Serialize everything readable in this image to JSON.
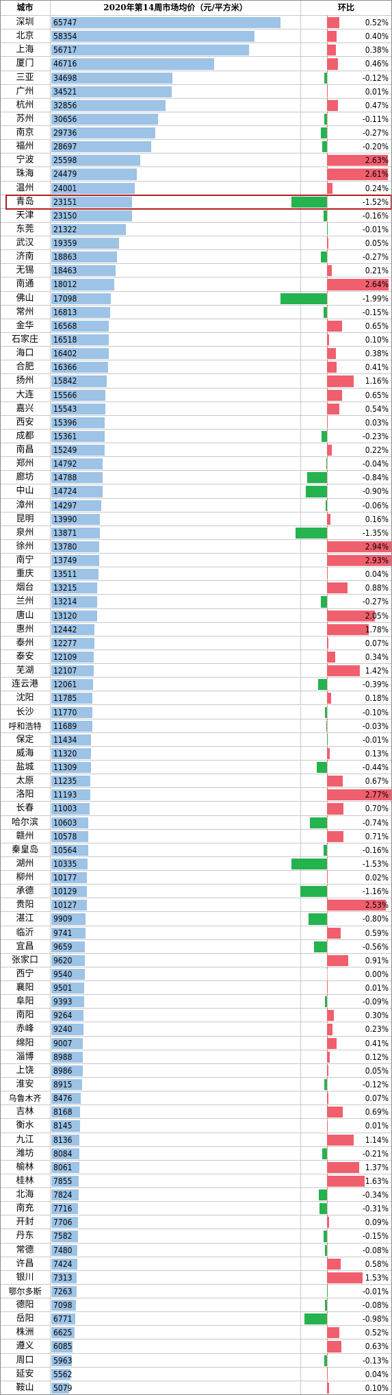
{
  "header": {
    "city": "城市",
    "title": "2020年第14周市场均价（元/平方米）",
    "change": "环比"
  },
  "colors": {
    "price_bar": "#9dc3e6",
    "increase": "#f05f6e",
    "decrease": "#24b34f",
    "highlight_border": "#b01e1e"
  },
  "highlight": {
    "city": "青岛"
  },
  "chart_data": {
    "type": "table",
    "title": "2020年第14周市场均价（元/平方米）",
    "columns": [
      "城市",
      "2020年第14周市场均价（元/平方米）",
      "环比"
    ],
    "rows": [
      {
        "city": "深圳",
        "price": 65747,
        "change": "0.52%"
      },
      {
        "city": "北京",
        "price": 58354,
        "change": "0.40%"
      },
      {
        "city": "上海",
        "price": 56717,
        "change": "0.38%"
      },
      {
        "city": "厦门",
        "price": 46716,
        "change": "0.46%"
      },
      {
        "city": "三亚",
        "price": 34698,
        "change": "-0.12%"
      },
      {
        "city": "广州",
        "price": 34521,
        "change": "0.01%"
      },
      {
        "city": "杭州",
        "price": 32856,
        "change": "0.47%"
      },
      {
        "city": "苏州",
        "price": 30656,
        "change": "-0.11%"
      },
      {
        "city": "南京",
        "price": 29736,
        "change": "-0.27%"
      },
      {
        "city": "福州",
        "price": 28697,
        "change": "-0.20%"
      },
      {
        "city": "宁波",
        "price": 25598,
        "change": "2.63%"
      },
      {
        "city": "珠海",
        "price": 24479,
        "change": "2.61%"
      },
      {
        "city": "温州",
        "price": 24001,
        "change": "0.24%"
      },
      {
        "city": "青岛",
        "price": 23151,
        "change": "-1.52%"
      },
      {
        "city": "天津",
        "price": 23150,
        "change": "-0.16%"
      },
      {
        "city": "东莞",
        "price": 21322,
        "change": "-0.01%"
      },
      {
        "city": "武汉",
        "price": 19359,
        "change": "0.05%"
      },
      {
        "city": "济南",
        "price": 18863,
        "change": "-0.27%"
      },
      {
        "city": "无锡",
        "price": 18463,
        "change": "0.21%"
      },
      {
        "city": "南通",
        "price": 18012,
        "change": "2.64%"
      },
      {
        "city": "佛山",
        "price": 17098,
        "change": "-1.99%"
      },
      {
        "city": "常州",
        "price": 16813,
        "change": "-0.15%"
      },
      {
        "city": "金华",
        "price": 16568,
        "change": "0.65%"
      },
      {
        "city": "石家庄",
        "price": 16518,
        "change": "0.10%"
      },
      {
        "city": "海口",
        "price": 16402,
        "change": "0.38%"
      },
      {
        "city": "合肥",
        "price": 16366,
        "change": "0.41%"
      },
      {
        "city": "扬州",
        "price": 15842,
        "change": "1.16%"
      },
      {
        "city": "大连",
        "price": 15566,
        "change": "0.65%"
      },
      {
        "city": "嘉兴",
        "price": 15543,
        "change": "0.54%"
      },
      {
        "city": "西安",
        "price": 15396,
        "change": "0.03%"
      },
      {
        "city": "成都",
        "price": 15361,
        "change": "-0.23%"
      },
      {
        "city": "南昌",
        "price": 15249,
        "change": "0.22%"
      },
      {
        "city": "郑州",
        "price": 14792,
        "change": "-0.04%"
      },
      {
        "city": "廊坊",
        "price": 14788,
        "change": "-0.84%"
      },
      {
        "city": "中山",
        "price": 14724,
        "change": "-0.90%"
      },
      {
        "city": "漳州",
        "price": 14297,
        "change": "-0.06%"
      },
      {
        "city": "昆明",
        "price": 13990,
        "change": "0.16%"
      },
      {
        "city": "泉州",
        "price": 13871,
        "change": "-1.35%"
      },
      {
        "city": "徐州",
        "price": 13780,
        "change": "2.94%"
      },
      {
        "city": "南宁",
        "price": 13749,
        "change": "2.93%"
      },
      {
        "city": "重庆",
        "price": 13511,
        "change": "0.04%"
      },
      {
        "city": "烟台",
        "price": 13215,
        "change": "0.88%"
      },
      {
        "city": "兰州",
        "price": 13214,
        "change": "-0.27%"
      },
      {
        "city": "唐山",
        "price": 13120,
        "change": "2.05%"
      },
      {
        "city": "惠州",
        "price": 12442,
        "change": "1.78%"
      },
      {
        "city": "泰州",
        "price": 12277,
        "change": "0.07%"
      },
      {
        "city": "泰安",
        "price": 12109,
        "change": "0.34%"
      },
      {
        "city": "芜湖",
        "price": 12107,
        "change": "1.42%"
      },
      {
        "city": "连云港",
        "price": 12061,
        "change": "-0.39%"
      },
      {
        "city": "沈阳",
        "price": 11785,
        "change": "0.18%"
      },
      {
        "city": "长沙",
        "price": 11770,
        "change": "-0.10%"
      },
      {
        "city": "呼和浩特",
        "price": 11689,
        "change": "-0.03%"
      },
      {
        "city": "保定",
        "price": 11434,
        "change": "-0.01%"
      },
      {
        "city": "威海",
        "price": 11320,
        "change": "0.13%"
      },
      {
        "city": "盐城",
        "price": 11309,
        "change": "-0.44%"
      },
      {
        "city": "太原",
        "price": 11235,
        "change": "0.67%"
      },
      {
        "city": "洛阳",
        "price": 11193,
        "change": "2.77%"
      },
      {
        "city": "长春",
        "price": 11003,
        "change": "0.70%"
      },
      {
        "city": "哈尔滨",
        "price": 10603,
        "change": "-0.74%"
      },
      {
        "city": "赣州",
        "price": 10578,
        "change": "0.71%"
      },
      {
        "city": "秦皇岛",
        "price": 10564,
        "change": "-0.16%"
      },
      {
        "city": "湖州",
        "price": 10335,
        "change": "-1.53%"
      },
      {
        "city": "柳州",
        "price": 10177,
        "change": "0.02%"
      },
      {
        "city": "承德",
        "price": 10129,
        "change": "-1.16%"
      },
      {
        "city": "贵阳",
        "price": 10127,
        "change": "2.53%"
      },
      {
        "city": "湛江",
        "price": 9909,
        "change": "-0.80%"
      },
      {
        "city": "临沂",
        "price": 9741,
        "change": "0.59%"
      },
      {
        "city": "宜昌",
        "price": 9659,
        "change": "-0.56%"
      },
      {
        "city": "张家口",
        "price": 9620,
        "change": "0.91%"
      },
      {
        "city": "西宁",
        "price": 9540,
        "change": "0.00%"
      },
      {
        "city": "襄阳",
        "price": 9501,
        "change": "0.01%"
      },
      {
        "city": "阜阳",
        "price": 9393,
        "change": "-0.09%"
      },
      {
        "city": "南阳",
        "price": 9264,
        "change": "0.30%"
      },
      {
        "city": "赤峰",
        "price": 9240,
        "change": "0.23%"
      },
      {
        "city": "绵阳",
        "price": 9007,
        "change": "0.41%"
      },
      {
        "city": "淄博",
        "price": 8988,
        "change": "0.12%"
      },
      {
        "city": "上饶",
        "price": 8986,
        "change": "0.05%"
      },
      {
        "city": "淮安",
        "price": 8915,
        "change": "-0.12%"
      },
      {
        "city": "乌鲁木齐",
        "price": 8476,
        "change": "0.07%"
      },
      {
        "city": "吉林",
        "price": 8168,
        "change": "0.69%"
      },
      {
        "city": "衡水",
        "price": 8145,
        "change": "0.01%"
      },
      {
        "city": "九江",
        "price": 8136,
        "change": "1.14%"
      },
      {
        "city": "潍坊",
        "price": 8084,
        "change": "-0.21%"
      },
      {
        "city": "榆林",
        "price": 8061,
        "change": "1.37%"
      },
      {
        "city": "桂林",
        "price": 7855,
        "change": "1.63%"
      },
      {
        "city": "北海",
        "price": 7824,
        "change": "-0.34%"
      },
      {
        "city": "南充",
        "price": 7716,
        "change": "-0.31%"
      },
      {
        "city": "开封",
        "price": 7706,
        "change": "0.09%"
      },
      {
        "city": "丹东",
        "price": 7582,
        "change": "-0.15%"
      },
      {
        "city": "常德",
        "price": 7480,
        "change": "-0.08%"
      },
      {
        "city": "许昌",
        "price": 7424,
        "change": "0.58%"
      },
      {
        "city": "银川",
        "price": 7313,
        "change": "1.53%"
      },
      {
        "city": "鄂尔多斯",
        "price": 7263,
        "change": "-0.01%"
      },
      {
        "city": "德阳",
        "price": 7098,
        "change": "-0.08%"
      },
      {
        "city": "岳阳",
        "price": 6771,
        "change": "-0.98%"
      },
      {
        "city": "株洲",
        "price": 6625,
        "change": "0.52%"
      },
      {
        "city": "遵义",
        "price": 6085,
        "change": "0.63%"
      },
      {
        "city": "周口",
        "price": 5963,
        "change": "-0.13%"
      },
      {
        "city": "延安",
        "price": 5562,
        "change": "0.04%"
      },
      {
        "city": "鞍山",
        "price": 5079,
        "change": "0.10%"
      }
    ]
  }
}
